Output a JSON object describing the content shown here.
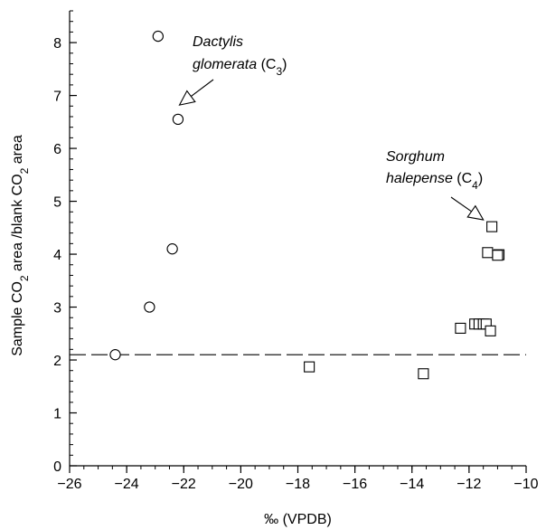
{
  "chart_data": {
    "type": "scatter",
    "xlabel": "‰ (VPDB)",
    "ylabel": {
      "parts": [
        {
          "text": "Sample CO",
          "sub": false
        },
        {
          "text": "2",
          "sub": true
        },
        {
          "text": " area /blank CO",
          "sub": false
        },
        {
          "text": "2",
          "sub": true
        },
        {
          "text": " area",
          "sub": false
        }
      ]
    },
    "xlim": [
      -26,
      -10
    ],
    "ylim": [
      0,
      8.6
    ],
    "x_ticks": [
      -26,
      -24,
      -22,
      -20,
      -18,
      -16,
      -14,
      -12,
      -10
    ],
    "y_ticks": [
      0,
      1,
      2,
      3,
      4,
      5,
      6,
      7,
      8
    ],
    "x_minor_step": 0.5,
    "y_minor_step": 0.2,
    "grid": false,
    "reference_line": {
      "y": 2.1,
      "style": "dashed"
    },
    "series": [
      {
        "marker": "circle",
        "points": [
          {
            "x": -22.9,
            "y": 8.12
          },
          {
            "x": -22.2,
            "y": 6.55
          },
          {
            "x": -22.4,
            "y": 4.1
          },
          {
            "x": -23.2,
            "y": 3.0
          },
          {
            "x": -24.4,
            "y": 2.1
          }
        ]
      },
      {
        "marker": "square",
        "points": [
          {
            "x": -11.2,
            "y": 4.52
          },
          {
            "x": -11.35,
            "y": 4.03
          },
          {
            "x": -10.95,
            "y": 3.99
          },
          {
            "x": -11.0,
            "y": 3.98
          },
          {
            "x": -12.3,
            "y": 2.6
          },
          {
            "x": -11.8,
            "y": 2.68
          },
          {
            "x": -11.65,
            "y": 2.68
          },
          {
            "x": -11.5,
            "y": 2.68
          },
          {
            "x": -11.4,
            "y": 2.68
          },
          {
            "x": -11.25,
            "y": 2.55
          },
          {
            "x": -17.6,
            "y": 1.87
          },
          {
            "x": -13.6,
            "y": 1.74
          }
        ]
      }
    ],
    "annotations": [
      {
        "id": "c3",
        "lines": [
          [
            {
              "text": "Dactylis",
              "italic": true
            }
          ],
          [
            {
              "text": "glomerata",
              "italic": true
            },
            {
              "text": " (C",
              "italic": false
            },
            {
              "text": "3",
              "sub": true
            },
            {
              "text": ")",
              "italic": false
            }
          ]
        ],
        "arrow_to": {
          "x": -22.15,
          "y": 6.82
        }
      },
      {
        "id": "c4",
        "lines": [
          [
            {
              "text": "Sorghum",
              "italic": true
            }
          ],
          [
            {
              "text": "halepense",
              "italic": true
            },
            {
              "text": " (C",
              "italic": false
            },
            {
              "text": "4",
              "sub": true
            },
            {
              "text": ")",
              "italic": false
            }
          ]
        ],
        "arrow_to": {
          "x": -11.5,
          "y": 4.65
        }
      }
    ]
  }
}
